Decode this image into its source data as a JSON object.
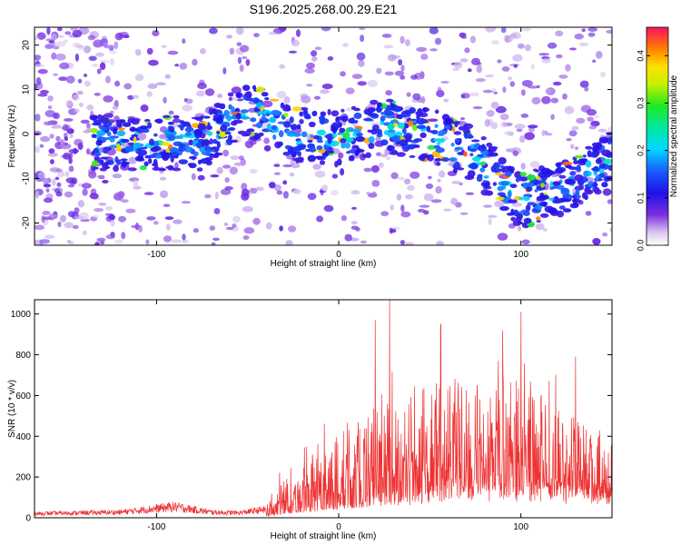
{
  "title": "S196.2025.268.00.29.E21",
  "chart_data": [
    {
      "type": "heatmap",
      "id": "spectrogram",
      "xlabel": "Height of straight line (km)",
      "ylabel": "Frequency (Hz)",
      "xlim": [
        -167,
        150
      ],
      "ylim": [
        -25,
        24
      ],
      "xticks": [
        -100,
        0,
        100
      ],
      "yticks": [
        -20,
        -10,
        0,
        10,
        20
      ],
      "colorbar": {
        "label": "Normalized spectral amplitude",
        "range": [
          0.0,
          0.46
        ],
        "ticks": [
          0.0,
          0.1,
          0.2,
          0.3,
          0.4
        ],
        "tick_labels": [
          "0.0",
          "0.1",
          "0.2",
          "0.3",
          "0.4"
        ]
      },
      "ridge": {
        "x": [
          -167,
          -100,
          -75,
          -50,
          -25,
          0,
          25,
          50,
          75,
          100,
          125,
          150
        ],
        "y": [
          -2,
          -2,
          -2,
          6,
          0,
          -1,
          2,
          0,
          -5,
          -15,
          -12,
          -5
        ]
      }
    },
    {
      "type": "line",
      "id": "snr",
      "xlabel": "Height of straight line (km)",
      "ylabel": "SNR (10 * v/v)",
      "xlim": [
        -167,
        150
      ],
      "ylim": [
        0,
        1070
      ],
      "xticks": [
        -100,
        0,
        100
      ],
      "yticks": [
        0,
        200,
        400,
        600,
        800,
        1000
      ],
      "color": "#ee3333",
      "envelope": {
        "x": [
          -167,
          -120,
          -90,
          -70,
          -55,
          -40,
          -30,
          -20,
          0,
          20,
          40,
          60,
          80,
          100,
          120,
          150
        ],
        "y": [
          30,
          40,
          80,
          40,
          35,
          60,
          200,
          250,
          420,
          560,
          600,
          700,
          640,
          700,
          560,
          400
        ]
      },
      "peaks": [
        {
          "x": 28,
          "y": 1070
        },
        {
          "x": 100,
          "y": 1010
        },
        {
          "x": 20,
          "y": 970
        },
        {
          "x": 56,
          "y": 950
        },
        {
          "x": 90,
          "y": 920
        },
        {
          "x": 130,
          "y": 790
        }
      ]
    }
  ]
}
